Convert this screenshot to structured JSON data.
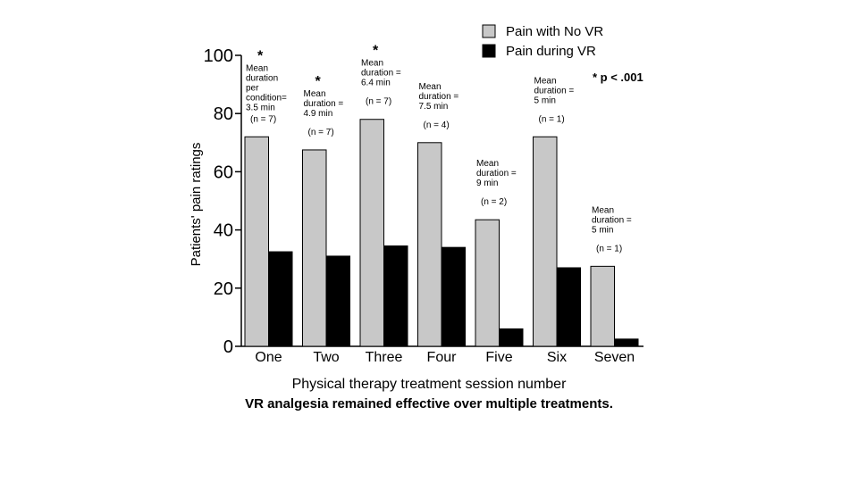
{
  "chart_data": {
    "type": "bar",
    "title": "",
    "xlabel": "Physical therapy treatment session number",
    "ylabel": "Patients' pain ratings",
    "ylim": [
      0,
      100
    ],
    "yticks": [
      0,
      20,
      40,
      60,
      80,
      100
    ],
    "categories": [
      "One",
      "Two",
      "Three",
      "Four",
      "Five",
      "Six",
      "Seven"
    ],
    "series": [
      {
        "name": "Pain with No VR",
        "color": "#c8c8c8",
        "values": [
          72,
          67.5,
          78,
          70,
          43.5,
          72,
          27.5
        ]
      },
      {
        "name": "Pain during VR",
        "color": "#000000",
        "values": [
          32.5,
          31,
          34.5,
          34,
          6,
          27,
          2.5
        ]
      }
    ],
    "annotations": [
      {
        "star": true,
        "lines": [
          "Mean",
          "duration",
          "per",
          "condition=",
          "3.5 min"
        ],
        "n": "(n = 7)"
      },
      {
        "star": true,
        "lines": [
          "Mean",
          "duration =",
          "4.9 min"
        ],
        "n": "(n = 7)"
      },
      {
        "star": true,
        "lines": [
          "Mean",
          "duration =",
          "6.4 min"
        ],
        "n": "(n = 7)"
      },
      {
        "star": false,
        "lines": [
          "Mean",
          "duration =",
          "7.5 min"
        ],
        "n": "(n = 4)"
      },
      {
        "star": false,
        "lines": [
          "Mean",
          "duration =",
          "9 min"
        ],
        "n": "(n = 2)"
      },
      {
        "star": false,
        "lines": [
          "Mean",
          "duration =",
          "5 min"
        ],
        "n": "(n = 1)"
      },
      {
        "star": false,
        "lines": [
          "Mean",
          "duration =",
          "5 min"
        ],
        "n": "(n = 1)"
      }
    ],
    "significance_note": "* p < .001",
    "star_symbol": "*",
    "legend_position": "top-right"
  },
  "caption": "VR analgesia remained effective over multiple treatments."
}
